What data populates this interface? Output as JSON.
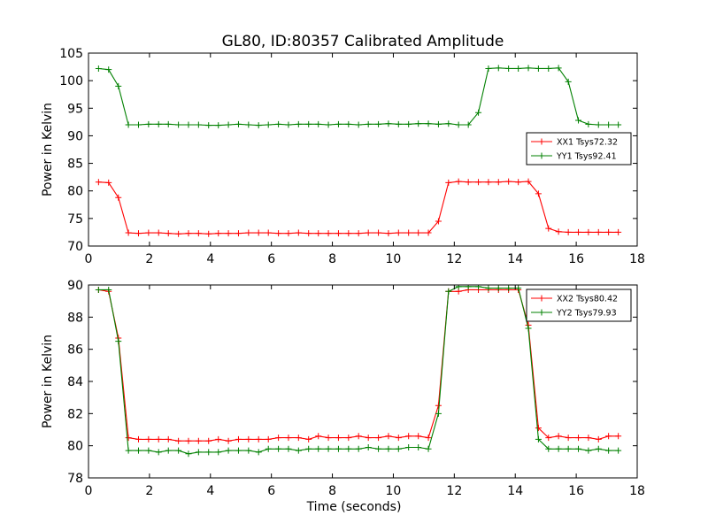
{
  "figure": {
    "title": "GL80, ID:80357 Calibrated Amplitude"
  },
  "chart_data": [
    {
      "type": "line",
      "ylabel": "Power in Kelvin",
      "xlabel": "",
      "xlim": [
        0,
        18
      ],
      "ylim": [
        70,
        105
      ],
      "xticks": [
        0,
        2,
        4,
        6,
        8,
        10,
        12,
        14,
        16,
        18
      ],
      "yticks": [
        70,
        75,
        80,
        85,
        90,
        95,
        100,
        105
      ],
      "grid": false,
      "legend_position": "center-right",
      "x": [
        0.33,
        0.66,
        0.98,
        1.31,
        1.64,
        1.97,
        2.3,
        2.62,
        2.95,
        3.28,
        3.61,
        3.94,
        4.26,
        4.59,
        4.92,
        5.25,
        5.58,
        5.9,
        6.23,
        6.56,
        6.89,
        7.22,
        7.54,
        7.87,
        8.2,
        8.53,
        8.86,
        9.18,
        9.51,
        9.84,
        10.17,
        10.5,
        10.82,
        11.15,
        11.48,
        11.81,
        12.14,
        12.46,
        12.79,
        13.12,
        13.45,
        13.78,
        14.1,
        14.43,
        14.76,
        15.09,
        15.42,
        15.74,
        16.07,
        16.4,
        16.73,
        17.06,
        17.38
      ],
      "series": [
        {
          "name": "XX1 Tsys72.32",
          "color": "#ff0000",
          "values": [
            81.6,
            81.5,
            78.8,
            72.4,
            72.3,
            72.4,
            72.4,
            72.3,
            72.2,
            72.3,
            72.3,
            72.2,
            72.3,
            72.3,
            72.3,
            72.4,
            72.4,
            72.4,
            72.3,
            72.3,
            72.4,
            72.3,
            72.3,
            72.3,
            72.3,
            72.3,
            72.3,
            72.4,
            72.4,
            72.3,
            72.4,
            72.4,
            72.4,
            72.4,
            74.5,
            81.5,
            81.7,
            81.6,
            81.6,
            81.6,
            81.6,
            81.7,
            81.6,
            81.7,
            79.5,
            73.2,
            72.6,
            72.5,
            72.5,
            72.5,
            72.5,
            72.5,
            72.5
          ]
        },
        {
          "name": "YY1 Tsys92.41",
          "color": "#008000",
          "values": [
            102.2,
            102.0,
            99.0,
            92.0,
            92.0,
            92.1,
            92.1,
            92.1,
            92.0,
            92.0,
            92.0,
            91.9,
            91.9,
            92.0,
            92.1,
            92.0,
            91.9,
            92.0,
            92.1,
            92.0,
            92.1,
            92.1,
            92.1,
            92.0,
            92.1,
            92.1,
            92.0,
            92.1,
            92.1,
            92.2,
            92.1,
            92.1,
            92.2,
            92.2,
            92.1,
            92.2,
            92.0,
            92.0,
            94.2,
            102.2,
            102.3,
            102.2,
            102.2,
            102.3,
            102.2,
            102.2,
            102.3,
            99.8,
            92.8,
            92.1,
            92.0,
            92.0,
            92.0
          ]
        }
      ]
    },
    {
      "type": "line",
      "ylabel": "Power in Kelvin",
      "xlabel": "Time (seconds)",
      "xlim": [
        0,
        18
      ],
      "ylim": [
        78,
        90
      ],
      "xticks": [
        0,
        2,
        4,
        6,
        8,
        10,
        12,
        14,
        16,
        18
      ],
      "yticks": [
        78,
        80,
        82,
        84,
        86,
        88,
        90
      ],
      "grid": false,
      "legend_position": "top-right",
      "x": [
        0.33,
        0.66,
        0.98,
        1.31,
        1.64,
        1.97,
        2.3,
        2.62,
        2.95,
        3.28,
        3.61,
        3.94,
        4.26,
        4.59,
        4.92,
        5.25,
        5.58,
        5.9,
        6.23,
        6.56,
        6.89,
        7.22,
        7.54,
        7.87,
        8.2,
        8.53,
        8.86,
        9.18,
        9.51,
        9.84,
        10.17,
        10.5,
        10.82,
        11.15,
        11.48,
        11.81,
        12.14,
        12.46,
        12.79,
        13.12,
        13.45,
        13.78,
        14.1,
        14.43,
        14.76,
        15.09,
        15.42,
        15.74,
        16.07,
        16.4,
        16.73,
        17.06,
        17.38
      ],
      "series": [
        {
          "name": "XX2 Tsys80.42",
          "color": "#ff0000",
          "values": [
            89.7,
            89.6,
            86.7,
            80.5,
            80.4,
            80.4,
            80.4,
            80.4,
            80.3,
            80.3,
            80.3,
            80.3,
            80.4,
            80.3,
            80.4,
            80.4,
            80.4,
            80.4,
            80.5,
            80.5,
            80.5,
            80.4,
            80.6,
            80.5,
            80.5,
            80.5,
            80.6,
            80.5,
            80.5,
            80.6,
            80.5,
            80.6,
            80.6,
            80.5,
            82.5,
            89.6,
            89.6,
            89.7,
            89.7,
            89.7,
            89.7,
            89.7,
            89.7,
            87.5,
            81.1,
            80.5,
            80.6,
            80.5,
            80.5,
            80.5,
            80.4,
            80.6,
            80.6
          ]
        },
        {
          "name": "YY2 Tsys79.93",
          "color": "#008000",
          "values": [
            89.7,
            89.7,
            86.5,
            79.7,
            79.7,
            79.7,
            79.6,
            79.7,
            79.7,
            79.5,
            79.6,
            79.6,
            79.6,
            79.7,
            79.7,
            79.7,
            79.6,
            79.8,
            79.8,
            79.8,
            79.7,
            79.8,
            79.8,
            79.8,
            79.8,
            79.8,
            79.8,
            79.9,
            79.8,
            79.8,
            79.8,
            79.9,
            79.9,
            79.8,
            82.0,
            89.6,
            89.9,
            89.9,
            89.9,
            89.8,
            89.8,
            89.8,
            89.8,
            87.3,
            80.4,
            79.8,
            79.8,
            79.8,
            79.8,
            79.7,
            79.8,
            79.7,
            79.7
          ]
        }
      ]
    }
  ]
}
